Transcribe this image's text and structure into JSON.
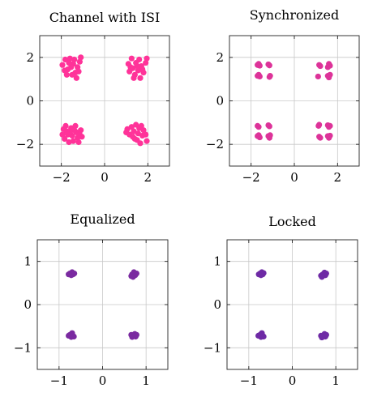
{
  "chart_data": [
    {
      "type": "scatter",
      "title": "Channel with ISI",
      "color": "#ff3399",
      "xlim": [
        -3,
        3
      ],
      "ylim": [
        -3,
        3
      ],
      "xticks": [
        -2,
        0,
        2
      ],
      "yticks": [
        -2,
        0,
        2
      ],
      "tick_labels_x": [
        "−2",
        "0",
        "2"
      ],
      "tick_labels_y": [
        "−2",
        "0",
        "2"
      ],
      "grid": true,
      "clusters": [
        {
          "center": [
            -1.5,
            1.5
          ],
          "spread": 0.25
        },
        {
          "center": [
            1.5,
            1.5
          ],
          "spread": 0.25
        },
        {
          "center": [
            -1.5,
            -1.5
          ],
          "spread": 0.25
        },
        {
          "center": [
            1.5,
            -1.5
          ],
          "spread": 0.25
        }
      ],
      "points": [
        [
          -1.95,
          1.65
        ],
        [
          -1.82,
          1.9
        ],
        [
          -1.7,
          1.45
        ],
        [
          -1.6,
          1.95
        ],
        [
          -1.5,
          1.2
        ],
        [
          -1.45,
          1.7
        ],
        [
          -1.35,
          1.3
        ],
        [
          -1.25,
          1.55
        ],
        [
          -1.15,
          1.8
        ],
        [
          -1.1,
          2.0
        ],
        [
          -1.55,
          1.55
        ],
        [
          -1.75,
          1.2
        ],
        [
          -1.3,
          1.05
        ],
        [
          -1.65,
          1.75
        ],
        [
          -1.2,
          1.35
        ],
        [
          -1.85,
          1.4
        ],
        [
          -1.4,
          1.9
        ],
        [
          1.1,
          1.7
        ],
        [
          1.15,
          1.35
        ],
        [
          1.25,
          1.95
        ],
        [
          1.3,
          1.5
        ],
        [
          1.4,
          1.2
        ],
        [
          1.45,
          1.75
        ],
        [
          1.55,
          1.4
        ],
        [
          1.6,
          1.9
        ],
        [
          1.65,
          1.05
        ],
        [
          1.7,
          1.6
        ],
        [
          1.8,
          1.3
        ],
        [
          1.9,
          1.75
        ],
        [
          1.95,
          1.95
        ],
        [
          1.35,
          1.05
        ],
        [
          1.5,
          1.6
        ],
        [
          1.75,
          1.45
        ],
        [
          1.2,
          1.55
        ],
        [
          -1.9,
          -1.3
        ],
        [
          -1.85,
          -1.75
        ],
        [
          -1.8,
          -1.15
        ],
        [
          -1.7,
          -1.55
        ],
        [
          -1.65,
          -1.9
        ],
        [
          -1.55,
          -1.25
        ],
        [
          -1.5,
          -1.6
        ],
        [
          -1.45,
          -1.85
        ],
        [
          -1.35,
          -1.15
        ],
        [
          -1.3,
          -1.45
        ],
        [
          -1.25,
          -1.7
        ],
        [
          -1.2,
          -1.9
        ],
        [
          -1.1,
          -1.35
        ],
        [
          -1.05,
          -1.65
        ],
        [
          -1.4,
          -1.35
        ],
        [
          -1.6,
          -1.45
        ],
        [
          -1.75,
          -1.4
        ],
        [
          -1.15,
          -1.55
        ],
        [
          -1.95,
          -1.55
        ],
        [
          1.0,
          -1.45
        ],
        [
          1.05,
          -1.3
        ],
        [
          1.15,
          -1.55
        ],
        [
          1.25,
          -1.2
        ],
        [
          1.3,
          -1.65
        ],
        [
          1.35,
          -1.4
        ],
        [
          1.45,
          -1.1
        ],
        [
          1.5,
          -1.8
        ],
        [
          1.55,
          -1.5
        ],
        [
          1.6,
          -1.25
        ],
        [
          1.65,
          -1.95
        ],
        [
          1.75,
          -1.6
        ],
        [
          1.8,
          -1.35
        ],
        [
          1.9,
          -1.55
        ],
        [
          1.95,
          -1.85
        ],
        [
          1.4,
          -1.75
        ],
        [
          1.7,
          -1.15
        ]
      ]
    },
    {
      "type": "scatter",
      "title": "Synchronized",
      "color": "#dd3399",
      "xlim": [
        -3,
        3
      ],
      "ylim": [
        -3,
        3
      ],
      "xticks": [
        -2,
        0,
        2
      ],
      "yticks": [
        -2,
        0,
        2
      ],
      "tick_labels_x": [
        "−2",
        "0",
        "2"
      ],
      "tick_labels_y": [
        "−2",
        "0",
        "2"
      ],
      "grid": true,
      "points": [
        [
          -1.7,
          1.65
        ],
        [
          -1.6,
          1.62
        ],
        [
          -1.65,
          1.7
        ],
        [
          -1.2,
          1.68
        ],
        [
          -1.15,
          1.63
        ],
        [
          -1.7,
          1.15
        ],
        [
          -1.6,
          1.12
        ],
        [
          -1.65,
          1.2
        ],
        [
          -1.15,
          1.1
        ],
        [
          -1.12,
          1.15
        ],
        [
          1.15,
          1.65
        ],
        [
          1.2,
          1.6
        ],
        [
          1.6,
          1.7
        ],
        [
          1.65,
          1.62
        ],
        [
          1.55,
          1.55
        ],
        [
          1.1,
          1.12
        ],
        [
          1.55,
          1.15
        ],
        [
          1.6,
          1.08
        ],
        [
          1.65,
          1.2
        ],
        [
          -1.7,
          -1.15
        ],
        [
          -1.65,
          -1.2
        ],
        [
          -1.2,
          -1.12
        ],
        [
          -1.15,
          -1.17
        ],
        [
          -1.7,
          -1.62
        ],
        [
          -1.6,
          -1.68
        ],
        [
          -1.65,
          -1.58
        ],
        [
          -1.2,
          -1.62
        ],
        [
          -1.15,
          -1.7
        ],
        [
          -1.12,
          -1.58
        ],
        [
          1.15,
          -1.1
        ],
        [
          1.12,
          -1.15
        ],
        [
          1.55,
          -1.12
        ],
        [
          1.65,
          -1.15
        ],
        [
          1.6,
          -1.2
        ],
        [
          1.15,
          -1.65
        ],
        [
          1.2,
          -1.7
        ],
        [
          1.55,
          -1.62
        ],
        [
          1.65,
          -1.6
        ],
        [
          1.6,
          -1.7
        ]
      ]
    },
    {
      "type": "scatter",
      "title": "Equalized",
      "color": "#7a2aa0",
      "xlim": [
        -1.5,
        1.5
      ],
      "ylim": [
        -1.5,
        1.5
      ],
      "xticks": [
        -1,
        0,
        1
      ],
      "yticks": [
        -1,
        0,
        1
      ],
      "tick_labels_x": [
        "−1",
        "0",
        "1"
      ],
      "tick_labels_y": [
        "−1",
        "0",
        "1"
      ],
      "grid": true,
      "points": [
        [
          -0.75,
          0.72
        ],
        [
          -0.7,
          0.75
        ],
        [
          -0.68,
          0.7
        ],
        [
          -0.72,
          0.68
        ],
        [
          -0.65,
          0.72
        ],
        [
          -0.78,
          0.7
        ],
        [
          0.68,
          0.7
        ],
        [
          0.72,
          0.75
        ],
        [
          0.75,
          0.68
        ],
        [
          0.7,
          0.64
        ],
        [
          0.66,
          0.66
        ],
        [
          0.78,
          0.72
        ],
        [
          -0.75,
          -0.7
        ],
        [
          -0.72,
          -0.75
        ],
        [
          -0.68,
          -0.72
        ],
        [
          -0.7,
          -0.66
        ],
        [
          -0.66,
          -0.74
        ],
        [
          -0.78,
          -0.72
        ],
        [
          0.7,
          -0.72
        ],
        [
          0.74,
          -0.68
        ],
        [
          0.76,
          -0.74
        ],
        [
          0.68,
          -0.75
        ],
        [
          0.66,
          -0.7
        ],
        [
          0.78,
          -0.7
        ]
      ]
    },
    {
      "type": "scatter",
      "title": "Locked",
      "color": "#6e2aa5",
      "xlim": [
        -1.5,
        1.5
      ],
      "ylim": [
        -1.5,
        1.5
      ],
      "xticks": [
        -1,
        0,
        1
      ],
      "yticks": [
        -1,
        0,
        1
      ],
      "tick_labels_x": [
        "−1",
        "0",
        "1"
      ],
      "tick_labels_y": [
        "−1",
        "0",
        "1"
      ],
      "grid": true,
      "points": [
        [
          -0.74,
          0.72
        ],
        [
          -0.7,
          0.75
        ],
        [
          -0.68,
          0.7
        ],
        [
          -0.72,
          0.68
        ],
        [
          -0.66,
          0.73
        ],
        [
          -0.77,
          0.7
        ],
        [
          0.7,
          0.7
        ],
        [
          0.74,
          0.74
        ],
        [
          0.76,
          0.68
        ],
        [
          0.68,
          0.64
        ],
        [
          0.66,
          0.67
        ],
        [
          0.78,
          0.72
        ],
        [
          -0.74,
          -0.7
        ],
        [
          -0.72,
          -0.75
        ],
        [
          -0.68,
          -0.72
        ],
        [
          -0.7,
          -0.66
        ],
        [
          -0.66,
          -0.74
        ],
        [
          -0.78,
          -0.72
        ],
        [
          0.7,
          -0.72
        ],
        [
          0.74,
          -0.68
        ],
        [
          0.76,
          -0.74
        ],
        [
          0.68,
          -0.76
        ],
        [
          0.66,
          -0.72
        ],
        [
          0.78,
          -0.7
        ]
      ]
    }
  ]
}
